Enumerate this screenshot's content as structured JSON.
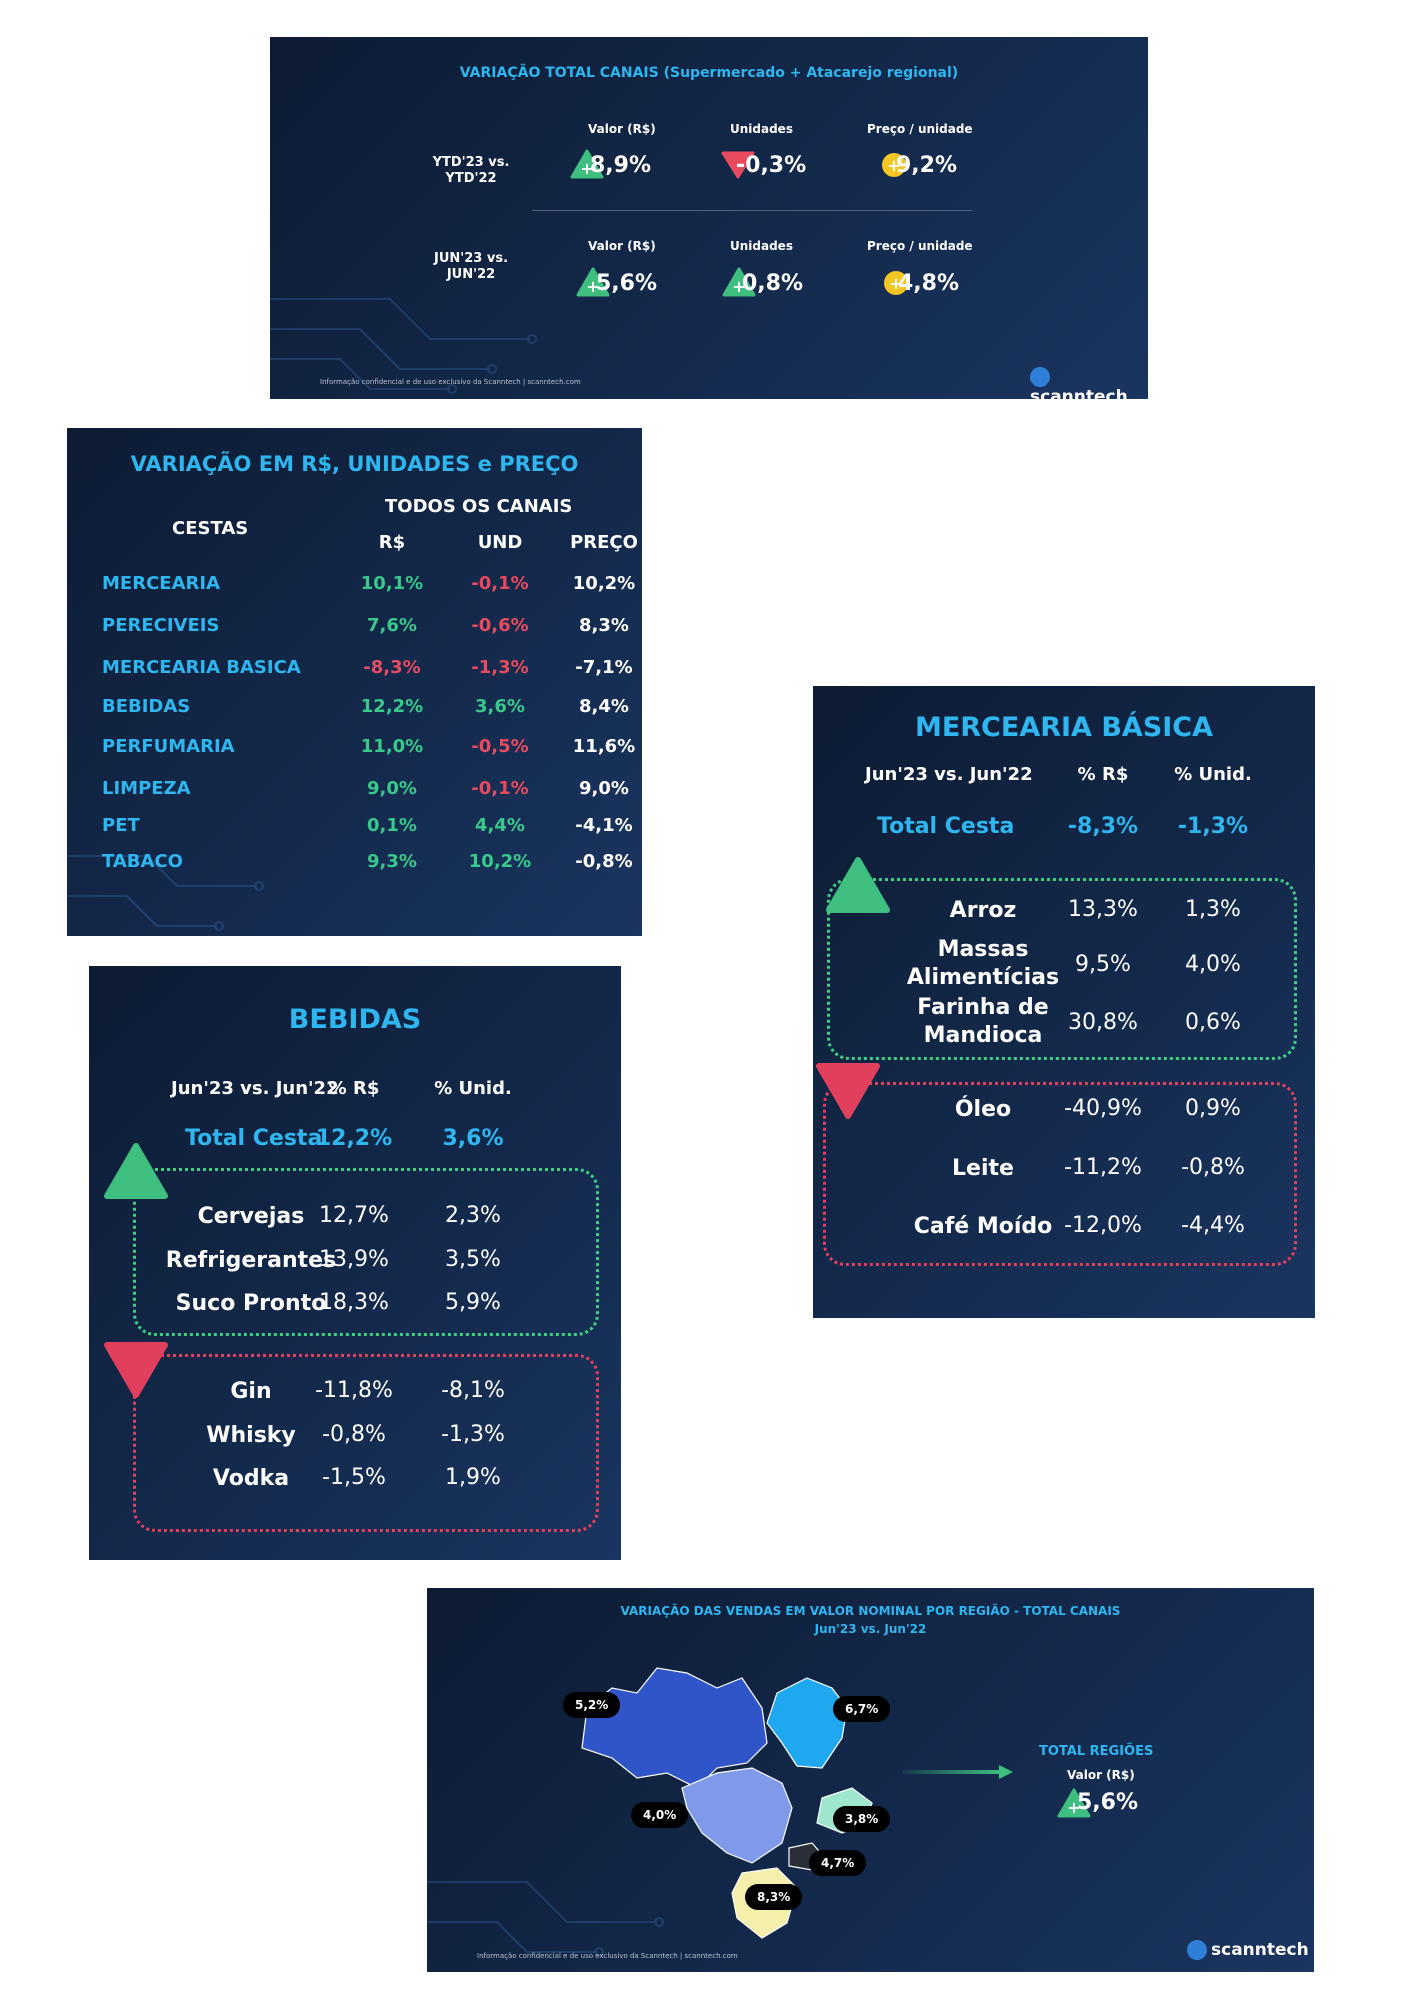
{
  "panel_total": {
    "title": "VARIAÇÃO TOTAL CANAIS  (Supermercado + Atacarejo regional)",
    "rows": [
      {
        "label_line1": "YTD'23 vs.",
        "label_line2": "YTD'22",
        "headers": [
          "Valor (R$)",
          "Unidades",
          "Preço / unidade"
        ],
        "values": [
          "8,9%",
          "-0,3%",
          "9,2%"
        ]
      },
      {
        "label_line1": "JUN'23 vs.",
        "label_line2": "JUN'22",
        "headers": [
          "Valor (R$)",
          "Unidades",
          "Preço / unidade"
        ],
        "values": [
          "5,6%",
          "0,8%",
          "4,8%"
        ]
      }
    ],
    "footnote": "Informação confidencial e de uso exclusivo da Scanntech | scanntech.com",
    "logo": "scanntech",
    "colors": {
      "up": "#3fbf7f",
      "down": "#e84a5f",
      "neutral": "#f3c623"
    }
  },
  "panel_cestas": {
    "title": "VARIAÇÃO EM R$, UNIDADES e PREÇO",
    "cestas_label": "CESTAS",
    "channels_label": "TODOS OS CANAIS",
    "cols": [
      "R$",
      "UND",
      "PREÇO"
    ],
    "rows": [
      {
        "name": "MERCEARIA",
        "rs": "10,1%",
        "und": "-0,1%",
        "preco": "10,2%"
      },
      {
        "name": "PERECIVEIS",
        "rs": "7,6%",
        "und": "-0,6%",
        "preco": "8,3%"
      },
      {
        "name": "MERCEARIA BASICA",
        "rs": "-8,3%",
        "und": "-1,3%",
        "preco": "-7,1%"
      },
      {
        "name": "BEBIDAS",
        "rs": "12,2%",
        "und": "3,6%",
        "preco": "8,4%"
      },
      {
        "name": "PERFUMARIA",
        "rs": "11,0%",
        "und": "-0,5%",
        "preco": "11,6%"
      },
      {
        "name": "LIMPEZA",
        "rs": "9,0%",
        "und": "-0,1%",
        "preco": "9,0%"
      },
      {
        "name": "PET",
        "rs": "0,1%",
        "und": "4,4%",
        "preco": "-4,1%"
      },
      {
        "name": "TABACO",
        "rs": "9,3%",
        "und": "10,2%",
        "preco": "-0,8%"
      }
    ]
  },
  "panel_bebidas": {
    "title": "BEBIDAS",
    "period": "Jun'23 vs. Jun'22",
    "col1": "% R$",
    "col2": "% Unid.",
    "total_label": "Total Cesta",
    "total_rs": "12,2%",
    "total_unid": "3,6%",
    "up_items": [
      {
        "name": "Cervejas",
        "rs": "12,7%",
        "unid": "2,3%"
      },
      {
        "name": "Refrigerantes",
        "rs": "13,9%",
        "unid": "3,5%"
      },
      {
        "name": "Suco Pronto",
        "rs": "18,3%",
        "unid": "5,9%"
      }
    ],
    "down_items": [
      {
        "name": "Gin",
        "rs": "-11,8%",
        "unid": "-8,1%"
      },
      {
        "name": "Whisky",
        "rs": "-0,8%",
        "unid": "-1,3%"
      },
      {
        "name": "Vodka",
        "rs": "-1,5%",
        "unid": "1,9%"
      }
    ]
  },
  "panel_mercearia": {
    "title": "MERCEARIA BÁSICA",
    "period": "Jun'23 vs. Jun'22",
    "col1": "% R$",
    "col2": "% Unid.",
    "total_label": "Total Cesta",
    "total_rs": "-8,3%",
    "total_unid": "-1,3%",
    "up_items": [
      {
        "name": "Arroz",
        "rs": "13,3%",
        "unid": "1,3%"
      },
      {
        "name_line1": "Massas",
        "name_line2": "Alimentícias",
        "rs": "9,5%",
        "unid": "4,0%"
      },
      {
        "name_line1": "Farinha de",
        "name_line2": "Mandioca",
        "rs": "30,8%",
        "unid": "0,6%"
      }
    ],
    "down_items": [
      {
        "name": "Óleo",
        "rs": "-40,9%",
        "unid": "0,9%"
      },
      {
        "name": "Leite",
        "rs": "-11,2%",
        "unid": "-0,8%"
      },
      {
        "name": "Café Moído",
        "rs": "-12,0%",
        "unid": "-4,4%"
      }
    ]
  },
  "panel_regioes": {
    "title_line1": "VARIAÇÃO DAS VENDAS EM VALOR NOMINAL POR REGIÃO -  TOTAL CANAIS",
    "title_line2": "Jun'23 vs. Jun'22",
    "regions": {
      "norte": "5,2%",
      "nordeste": "6,7%",
      "centro_oeste": "4,0%",
      "sudeste": "3,8%",
      "sao_paulo": "4,7%",
      "sul": "8,3%"
    },
    "total_label": "TOTAL REGIÕES",
    "total_sub": "Valor (R$)",
    "total_value": "5,6%",
    "footnote": "Informação confidencial e de uso exclusivo da Scanntech | scanntech.com",
    "logo": "scanntech",
    "colors": {
      "norte": "#2f55c8",
      "nordeste": "#1fa8f0",
      "centro_oeste": "#7e9ae8",
      "sudeste": "#9ee6cc",
      "sao_paulo": "#2a2e36",
      "sul": "#f4efaa"
    }
  }
}
